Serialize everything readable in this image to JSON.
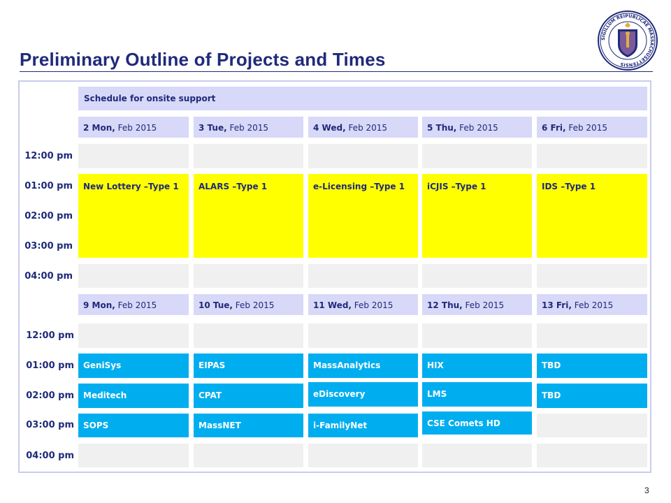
{
  "slide": {
    "title": "Preliminary Outline of Projects and Times",
    "page_number": "3",
    "accent_color": "#1f2a7a"
  },
  "seal": {
    "icon": "massachusetts-seal-icon",
    "text": "SIGILLUM REIPUBLICAE MASSACHUSETTENSIS"
  },
  "schedule": {
    "banner": "Schedule for onsite support",
    "week1": {
      "days": [
        {
          "num": "2 Mon,",
          "rest": " Feb 2015"
        },
        {
          "num": "3 Tue,",
          "rest": " Feb 2015"
        },
        {
          "num": "4 Wed,",
          "rest": " Feb 2015"
        },
        {
          "num": "5 Thu,",
          "rest": " Feb 2015"
        },
        {
          "num": "6 Fri,",
          "rest": " Feb 2015"
        }
      ],
      "times": [
        "12:00 pm",
        "01:00 pm",
        "02:00 pm",
        "03:00 pm",
        "04:00 pm"
      ],
      "events": [
        "New Lottery –Type 1",
        "ALARS –Type 1",
        "e-Licensing –Type 1",
        "iCJIS –Type 1",
        "IDS –Type 1"
      ],
      "event_color": "#ffff00"
    },
    "week2": {
      "days": [
        {
          "num": "9 Mon,",
          "rest": " Feb 2015"
        },
        {
          "num": "10 Tue,",
          "rest": " Feb 2015"
        },
        {
          "num": "11 Wed,",
          "rest": " Feb 2015"
        },
        {
          "num": "12 Thu,",
          "rest": " Feb 2015"
        },
        {
          "num": "13 Fri,",
          "rest": " Feb 2015"
        }
      ],
      "times": [
        "12:00 pm",
        "01:00 pm",
        "02:00 pm",
        "03:00 pm",
        "04:00 pm"
      ],
      "row_1pm": [
        "GeniSys",
        "EIPAS",
        "MassAnalytics",
        "HIX",
        "TBD"
      ],
      "row_2pm": [
        "Meditech",
        "CPAT",
        "eDiscovery",
        "LMS",
        "TBD"
      ],
      "row_3pm": [
        "SOPS",
        "MassNET",
        "i-FamilyNet",
        "CSE Comets HD"
      ],
      "event_color": "#00aeef"
    }
  }
}
